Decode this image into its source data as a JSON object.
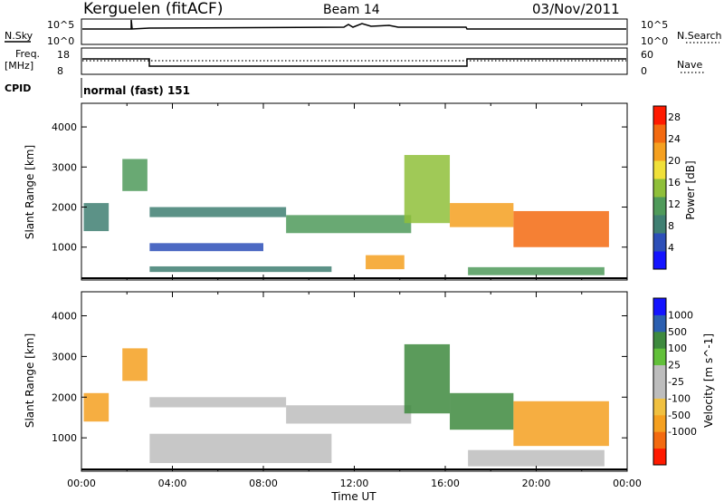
{
  "header": {
    "site": "Kerguelen (fitACF)",
    "beam": "Beam 14",
    "date": "03/Nov/2011"
  },
  "strips": {
    "nsky": {
      "label": "N.Sky",
      "tick_hi": "10^5",
      "tick_lo": "10^0"
    },
    "nsearch": {
      "label": "N.Search",
      "tick_hi": "10^5",
      "tick_lo": "10^0"
    },
    "freq": {
      "label_1": "Freq.",
      "label_2": "[MHz]",
      "tick_hi": "18",
      "tick_lo": "8"
    },
    "nave": {
      "label": "Nave",
      "tick_hi": "60",
      "tick_lo": "0"
    },
    "cpid": {
      "label": "CPID",
      "value": "normal (fast) 151"
    }
  },
  "colors": {
    "power": [
      "#1414ff",
      "#2d4fb8",
      "#3f7f72",
      "#4f9a5a",
      "#8fbf3a",
      "#f0e03a",
      "#f5a020",
      "#f36a10",
      "#ff1a00"
    ],
    "velocity": [
      "#ff1a00",
      "#f36a10",
      "#f5a020",
      "#f0c040",
      "#bdbdbd",
      "#bdbdbd",
      "#62c03a",
      "#3e8a3e",
      "#2b5fb0",
      "#1414ff"
    ]
  },
  "chart_data": [
    {
      "type": "heatmap",
      "ylabel": "Slant Range [km]",
      "ylim": [
        180,
        4590
      ],
      "xlim": [
        "00:00",
        "24:00"
      ],
      "y_ticks": [
        "1000",
        "2000",
        "3000",
        "4000"
      ],
      "colorbar": {
        "label": "Power [dB]",
        "ticks": [
          "4",
          "8",
          "12",
          "16",
          "20",
          "24",
          "28"
        ],
        "range": [
          0,
          30
        ]
      },
      "regions": [
        {
          "t0": 0.1,
          "t1": 1.2,
          "r0": 1400,
          "r1": 2100,
          "value": 8
        },
        {
          "t0": 1.8,
          "t1": 2.9,
          "r0": 2400,
          "r1": 3200,
          "value": 10
        },
        {
          "t0": 3.0,
          "t1": 9.0,
          "r0": 1750,
          "r1": 2000,
          "value": 7
        },
        {
          "t0": 3.0,
          "t1": 8.0,
          "r0": 900,
          "r1": 1100,
          "value": 6
        },
        {
          "t0": 3.0,
          "t1": 11.0,
          "r0": 380,
          "r1": 520,
          "value": 7
        },
        {
          "t0": 9.0,
          "t1": 14.5,
          "r0": 1350,
          "r1": 1800,
          "value": 12
        },
        {
          "t0": 12.5,
          "t1": 14.2,
          "r0": 450,
          "r1": 800,
          "value": 20
        },
        {
          "t0": 14.2,
          "t1": 16.2,
          "r0": 1600,
          "r1": 3300,
          "value": 16
        },
        {
          "t0": 16.2,
          "t1": 19.0,
          "r0": 1500,
          "r1": 2100,
          "value": 22
        },
        {
          "t0": 19.0,
          "t1": 23.2,
          "r0": 1000,
          "r1": 1900,
          "value": 26
        },
        {
          "t0": 17.0,
          "t1": 23.0,
          "r0": 300,
          "r1": 500,
          "value": 12
        }
      ]
    },
    {
      "type": "heatmap",
      "xlabel": "Time UT",
      "ylabel": "Slant Range [km]",
      "ylim": [
        180,
        4590
      ],
      "xlim": [
        "00:00",
        "24:00"
      ],
      "x_ticks": [
        "00:00",
        "04:00",
        "08:00",
        "12:00",
        "16:00",
        "20:00",
        "00:00"
      ],
      "y_ticks": [
        "1000",
        "2000",
        "3000",
        "4000"
      ],
      "colorbar": {
        "label": "Velocity [m s^-1]",
        "ticks": [
          "1000",
          "500",
          "100",
          "25",
          "-25",
          "-100",
          "-500",
          "-1000"
        ]
      },
      "regions": [
        {
          "t0": 0.1,
          "t1": 1.2,
          "r0": 1400,
          "r1": 2100,
          "value": -300
        },
        {
          "t0": 1.8,
          "t1": 2.9,
          "r0": 2400,
          "r1": 3200,
          "value": -300
        },
        {
          "t0": 3.0,
          "t1": 9.0,
          "r0": 1750,
          "r1": 2000,
          "value": 0
        },
        {
          "t0": 3.0,
          "t1": 11.0,
          "r0": 380,
          "r1": 1100,
          "value": 0
        },
        {
          "t0": 9.0,
          "t1": 14.5,
          "r0": 1350,
          "r1": 1800,
          "value": 0
        },
        {
          "t0": 14.2,
          "t1": 16.2,
          "r0": 1600,
          "r1": 3300,
          "value": 200
        },
        {
          "t0": 16.2,
          "t1": 19.0,
          "r0": 1200,
          "r1": 2100,
          "value": 150
        },
        {
          "t0": 19.0,
          "t1": 23.2,
          "r0": 800,
          "r1": 1900,
          "value": -300
        },
        {
          "t0": 17.0,
          "t1": 23.0,
          "r0": 300,
          "r1": 700,
          "value": 0
        }
      ]
    }
  ]
}
